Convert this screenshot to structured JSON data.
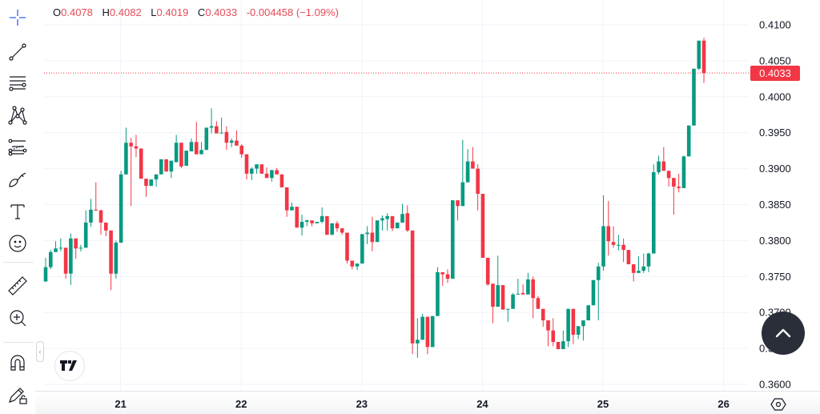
{
  "legend": {
    "open_label": "O",
    "open": "0.4078",
    "high_label": "H",
    "high": "0.4082",
    "low_label": "L",
    "low": "0.4019",
    "close_label": "C",
    "close": "0.4033",
    "change": "-0.004458 (−1.09%)"
  },
  "last_price_label": "0.4033",
  "toolbar": {
    "icons": [
      "crosshair-icon",
      "trend-line-icon",
      "horizontal-lines-icon",
      "pattern-icon",
      "fib-icon",
      "brush-icon",
      "text-icon",
      "emoji-icon",
      "ruler-icon",
      "zoom-in-icon",
      "magnet-icon",
      "lock-drawings-icon"
    ]
  },
  "colors": {
    "up": "#089981",
    "down": "#f23645",
    "grid": "#f0f3fa",
    "last_price": "#f23645"
  },
  "chart_data": {
    "type": "candlestick",
    "interval_hint": "hourly",
    "y_ticks": [
      "0.3600",
      "0.3650",
      "0.3700",
      "0.3750",
      "0.3800",
      "0.3850",
      "0.3900",
      "0.3950",
      "0.4000",
      "0.4050",
      "0.4100"
    ],
    "x_ticks": [
      "21",
      "22",
      "23",
      "24",
      "25",
      "26"
    ],
    "ylim": [
      0.3589,
      0.4134
    ],
    "grid": true,
    "last_price": 0.4033,
    "ohlc": [
      [
        0.3743,
        0.3776,
        0.3743,
        0.3763
      ],
      [
        0.3763,
        0.3787,
        0.376,
        0.3784
      ],
      [
        0.3784,
        0.3799,
        0.3784,
        0.3789
      ],
      [
        0.3789,
        0.3803,
        0.3785,
        0.379
      ],
      [
        0.379,
        0.379,
        0.3747,
        0.3754
      ],
      [
        0.3754,
        0.381,
        0.3738,
        0.3803
      ],
      [
        0.3803,
        0.3803,
        0.3775,
        0.3789
      ],
      [
        0.3789,
        0.3794,
        0.3785,
        0.379
      ],
      [
        0.379,
        0.3842,
        0.379,
        0.3825
      ],
      [
        0.3825,
        0.3858,
        0.3819,
        0.3843
      ],
      [
        0.3843,
        0.3881,
        0.3841,
        0.3842
      ],
      [
        0.3842,
        0.3843,
        0.3808,
        0.3825
      ],
      [
        0.3825,
        0.3825,
        0.3806,
        0.3814
      ],
      [
        0.3814,
        0.3814,
        0.3731,
        0.3754
      ],
      [
        0.3754,
        0.38,
        0.3747,
        0.3797
      ],
      [
        0.3797,
        0.3897,
        0.3797,
        0.3892
      ],
      [
        0.3892,
        0.3957,
        0.3892,
        0.3936
      ],
      [
        0.3936,
        0.3943,
        0.3848,
        0.3931
      ],
      [
        0.3931,
        0.3947,
        0.3916,
        0.3928
      ],
      [
        0.3928,
        0.3928,
        0.3886,
        0.3886
      ],
      [
        0.3886,
        0.3886,
        0.3861,
        0.3876
      ],
      [
        0.3876,
        0.3885,
        0.3876,
        0.3885
      ],
      [
        0.3885,
        0.3892,
        0.3875,
        0.3892
      ],
      [
        0.3892,
        0.3913,
        0.3892,
        0.3913
      ],
      [
        0.3913,
        0.3913,
        0.3896,
        0.3896
      ],
      [
        0.3896,
        0.3911,
        0.3887,
        0.3911
      ],
      [
        0.3909,
        0.3947,
        0.3909,
        0.3936
      ],
      [
        0.3936,
        0.3936,
        0.3901,
        0.3903
      ],
      [
        0.3904,
        0.3925,
        0.3904,
        0.3925
      ],
      [
        0.3924,
        0.3942,
        0.3924,
        0.3937
      ],
      [
        0.3937,
        0.3965,
        0.392,
        0.392
      ],
      [
        0.392,
        0.3937,
        0.392,
        0.3926
      ],
      [
        0.3926,
        0.3957,
        0.3926,
        0.3957
      ],
      [
        0.3957,
        0.3984,
        0.3949,
        0.3959
      ],
      [
        0.3959,
        0.3966,
        0.3949,
        0.3949
      ],
      [
        0.3949,
        0.3971,
        0.3949,
        0.395
      ],
      [
        0.3951,
        0.3959,
        0.3926,
        0.3936
      ],
      [
        0.3936,
        0.3942,
        0.393,
        0.3939
      ],
      [
        0.3939,
        0.3953,
        0.3932,
        0.3932
      ],
      [
        0.3932,
        0.3934,
        0.3915,
        0.392
      ],
      [
        0.392,
        0.392,
        0.3885,
        0.3893
      ],
      [
        0.3893,
        0.3902,
        0.3884,
        0.39
      ],
      [
        0.39,
        0.3906,
        0.3893,
        0.3906
      ],
      [
        0.3906,
        0.3906,
        0.3893,
        0.3893
      ],
      [
        0.3893,
        0.3902,
        0.3887,
        0.3887
      ],
      [
        0.3887,
        0.3898,
        0.3882,
        0.3898
      ],
      [
        0.3898,
        0.3901,
        0.3892,
        0.3892
      ],
      [
        0.3892,
        0.3892,
        0.3874,
        0.3874
      ],
      [
        0.3874,
        0.3874,
        0.3833,
        0.3842
      ],
      [
        0.3842,
        0.3853,
        0.3842,
        0.3847
      ],
      [
        0.3847,
        0.3847,
        0.3818,
        0.3818
      ],
      [
        0.3818,
        0.3836,
        0.3807,
        0.3826
      ],
      [
        0.3826,
        0.3829,
        0.382,
        0.3828
      ],
      [
        0.3828,
        0.3828,
        0.382,
        0.3824
      ],
      [
        0.3824,
        0.3826,
        0.3824,
        0.3826
      ],
      [
        0.3826,
        0.3846,
        0.3824,
        0.3834
      ],
      [
        0.3834,
        0.3834,
        0.3808,
        0.3808
      ],
      [
        0.3808,
        0.3824,
        0.3808,
        0.3824
      ],
      [
        0.3824,
        0.3827,
        0.3812,
        0.3817
      ],
      [
        0.3817,
        0.3817,
        0.3808,
        0.3811
      ],
      [
        0.3811,
        0.3811,
        0.3768,
        0.3772
      ],
      [
        0.3772,
        0.3772,
        0.376,
        0.3764
      ],
      [
        0.3764,
        0.3768,
        0.3759,
        0.3768
      ],
      [
        0.3768,
        0.3809,
        0.3768,
        0.3809
      ],
      [
        0.3809,
        0.382,
        0.3795,
        0.3811
      ],
      [
        0.3811,
        0.3833,
        0.3785,
        0.3798
      ],
      [
        0.3798,
        0.3828,
        0.3798,
        0.3828
      ],
      [
        0.3828,
        0.3835,
        0.3814,
        0.3831
      ],
      [
        0.383,
        0.3838,
        0.3814,
        0.3834
      ],
      [
        0.3834,
        0.3834,
        0.3813,
        0.3817
      ],
      [
        0.3817,
        0.3825,
        0.3817,
        0.3825
      ],
      [
        0.3825,
        0.3851,
        0.3825,
        0.3837
      ],
      [
        0.3838,
        0.3849,
        0.3812,
        0.3814
      ],
      [
        0.3814,
        0.3814,
        0.3642,
        0.3657
      ],
      [
        0.3657,
        0.3692,
        0.3637,
        0.3662
      ],
      [
        0.3662,
        0.3698,
        0.3662,
        0.3694
      ],
      [
        0.3694,
        0.3694,
        0.3642,
        0.3652
      ],
      [
        0.3652,
        0.3695,
        0.3652,
        0.3695
      ],
      [
        0.3695,
        0.3763,
        0.3695,
        0.3756
      ],
      [
        0.3756,
        0.3756,
        0.3737,
        0.3753
      ],
      [
        0.3753,
        0.376,
        0.3741,
        0.3747
      ],
      [
        0.3747,
        0.3856,
        0.3747,
        0.3856
      ],
      [
        0.3856,
        0.3856,
        0.3828,
        0.3848
      ],
      [
        0.3848,
        0.394,
        0.3848,
        0.3881
      ],
      [
        0.3881,
        0.3927,
        0.3881,
        0.391
      ],
      [
        0.391,
        0.393,
        0.39,
        0.39
      ],
      [
        0.39,
        0.3906,
        0.3842,
        0.3865
      ],
      [
        0.3865,
        0.3865,
        0.3776,
        0.3776
      ],
      [
        0.3776,
        0.3776,
        0.3737,
        0.3739
      ],
      [
        0.374,
        0.374,
        0.3685,
        0.3708
      ],
      [
        0.3708,
        0.3779,
        0.3708,
        0.3738
      ],
      [
        0.3738,
        0.3738,
        0.3704,
        0.3704
      ],
      [
        0.3704,
        0.3705,
        0.3687,
        0.3705
      ],
      [
        0.3705,
        0.3727,
        0.3705,
        0.3725
      ],
      [
        0.3725,
        0.3747,
        0.3725,
        0.3726
      ],
      [
        0.3727,
        0.3739,
        0.3725,
        0.3725
      ],
      [
        0.3725,
        0.3755,
        0.3725,
        0.3746
      ],
      [
        0.3746,
        0.375,
        0.3692,
        0.372
      ],
      [
        0.372,
        0.3723,
        0.3705,
        0.3705
      ],
      [
        0.3705,
        0.3705,
        0.368,
        0.3689
      ],
      [
        0.3689,
        0.3689,
        0.3653,
        0.3675
      ],
      [
        0.3675,
        0.3692,
        0.3653,
        0.3659
      ],
      [
        0.3659,
        0.3659,
        0.3649,
        0.3649
      ],
      [
        0.3649,
        0.3675,
        0.3649,
        0.366
      ],
      [
        0.366,
        0.3705,
        0.3652,
        0.3705
      ],
      [
        0.3705,
        0.3705,
        0.3656,
        0.3669
      ],
      [
        0.3669,
        0.3681,
        0.3663,
        0.3681
      ],
      [
        0.3681,
        0.3689,
        0.3661,
        0.3689
      ],
      [
        0.3689,
        0.371,
        0.3689,
        0.371
      ],
      [
        0.371,
        0.3745,
        0.371,
        0.3745
      ],
      [
        0.3745,
        0.3769,
        0.3689,
        0.3764
      ],
      [
        0.3764,
        0.3863,
        0.3758,
        0.382
      ],
      [
        0.382,
        0.3855,
        0.3779,
        0.3799
      ],
      [
        0.3798,
        0.382,
        0.379,
        0.3794
      ],
      [
        0.3794,
        0.3808,
        0.3786,
        0.3794
      ],
      [
        0.3794,
        0.3803,
        0.377,
        0.3787
      ],
      [
        0.3787,
        0.3787,
        0.3767,
        0.3767
      ],
      [
        0.3767,
        0.3767,
        0.3743,
        0.3755
      ],
      [
        0.3755,
        0.3778,
        0.3755,
        0.3758
      ],
      [
        0.3758,
        0.3782,
        0.3755,
        0.3764
      ],
      [
        0.3764,
        0.3783,
        0.3756,
        0.3782
      ],
      [
        0.3782,
        0.3906,
        0.3782,
        0.3895
      ],
      [
        0.3895,
        0.3918,
        0.3892,
        0.391
      ],
      [
        0.391,
        0.393,
        0.3897,
        0.3897
      ],
      [
        0.3897,
        0.3897,
        0.3875,
        0.3887
      ],
      [
        0.3887,
        0.3887,
        0.3836,
        0.3875
      ],
      [
        0.3875,
        0.3893,
        0.3867,
        0.3873
      ],
      [
        0.3873,
        0.3918,
        0.3873,
        0.3917
      ],
      [
        0.3917,
        0.396,
        0.3917,
        0.396
      ],
      [
        0.396,
        0.4039,
        0.396,
        0.4039
      ],
      [
        0.4039,
        0.4078,
        0.4037,
        0.4078
      ],
      [
        0.4078,
        0.4082,
        0.4019,
        0.4033
      ]
    ]
  }
}
